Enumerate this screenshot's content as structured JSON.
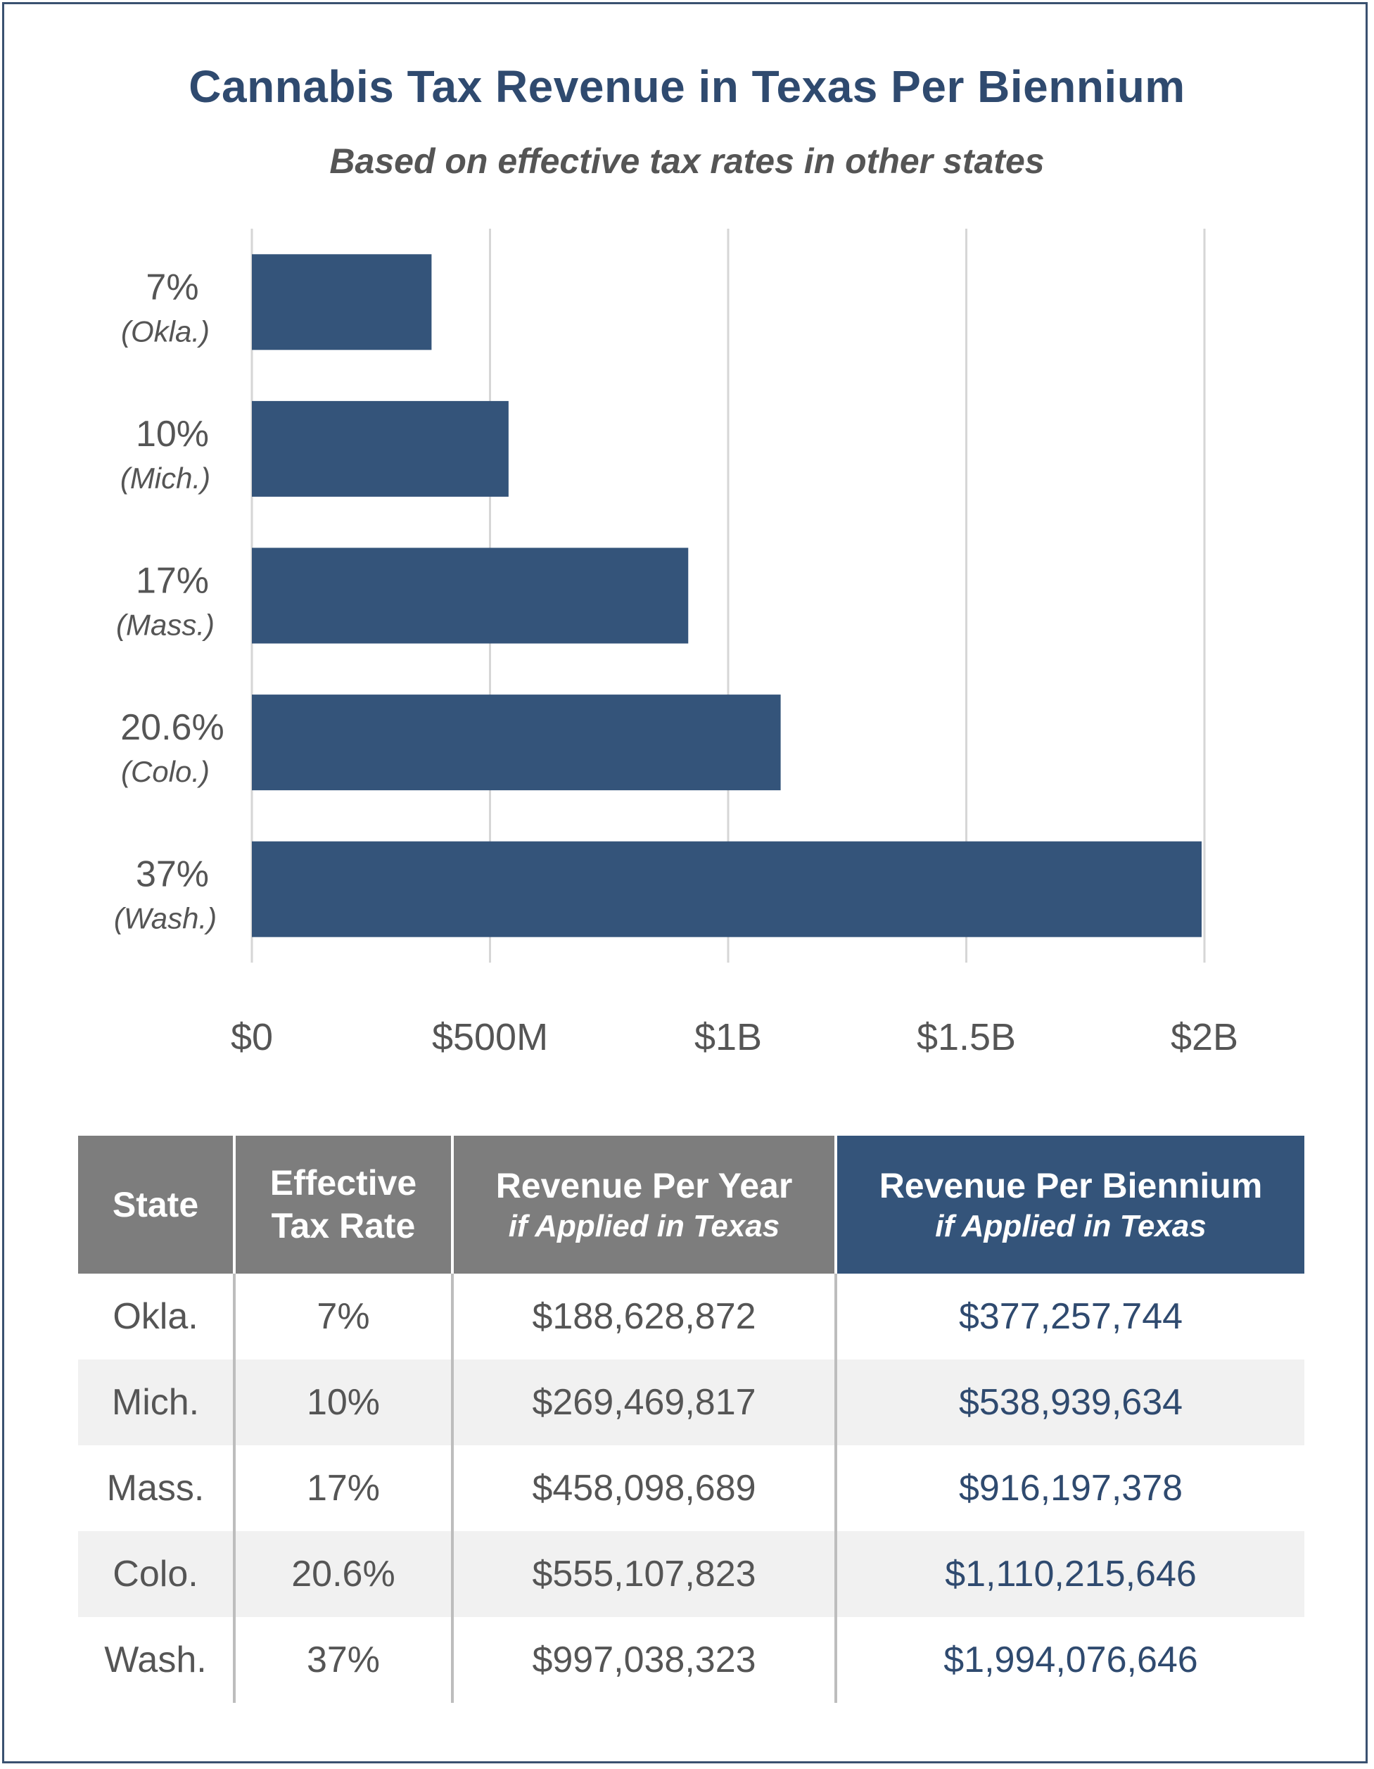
{
  "chart_data": {
    "type": "bar",
    "orientation": "horizontal",
    "title": "Cannabis Tax Revenue in Texas Per Biennium",
    "subtitle": "Based on effective tax rates in other states",
    "categories": [
      {
        "rate": "7%",
        "state": "(Okla.)"
      },
      {
        "rate": "10%",
        "state": "(Mich.)"
      },
      {
        "rate": "17%",
        "state": "(Mass.)"
      },
      {
        "rate": "20.6%",
        "state": "(Colo.)"
      },
      {
        "rate": "37%",
        "state": "(Wash.)"
      }
    ],
    "values": [
      377257744,
      538939634,
      916197378,
      1110215646,
      1994076646
    ],
    "xlim": [
      0,
      2000000000
    ],
    "xticks": [
      {
        "value": 0,
        "label": "$0"
      },
      {
        "value": 500000000,
        "label": "$500M"
      },
      {
        "value": 1000000000,
        "label": "$1B"
      },
      {
        "value": 1500000000,
        "label": "$1.5B"
      },
      {
        "value": 2000000000,
        "label": "$2B"
      }
    ],
    "grid": true,
    "colors": {
      "bar": "#34547a",
      "grid": "#d6d6d6",
      "text": "#555555"
    }
  },
  "table": {
    "headers": {
      "state": "State",
      "rate_line1": "Effective",
      "rate_line2": "Tax Rate",
      "year_main": "Revenue Per Year",
      "year_sub": "if Applied in Texas",
      "biennium_main": "Revenue Per Biennium",
      "biennium_sub": "if Applied in Texas"
    },
    "rows": [
      {
        "state": "Okla.",
        "rate": "7%",
        "per_year": "$188,628,872",
        "per_biennium": "$377,257,744"
      },
      {
        "state": "Mich.",
        "rate": "10%",
        "per_year": "$269,469,817",
        "per_biennium": "$538,939,634"
      },
      {
        "state": "Mass.",
        "rate": "17%",
        "per_year": "$458,098,689",
        "per_biennium": "$916,197,378"
      },
      {
        "state": "Colo.",
        "rate": "20.6%",
        "per_year": "$555,107,823",
        "per_biennium": "$1,110,215,646"
      },
      {
        "state": "Wash.",
        "rate": "37%",
        "per_year": "$997,038,323",
        "per_biennium": "$1,994,076,646"
      }
    ]
  }
}
